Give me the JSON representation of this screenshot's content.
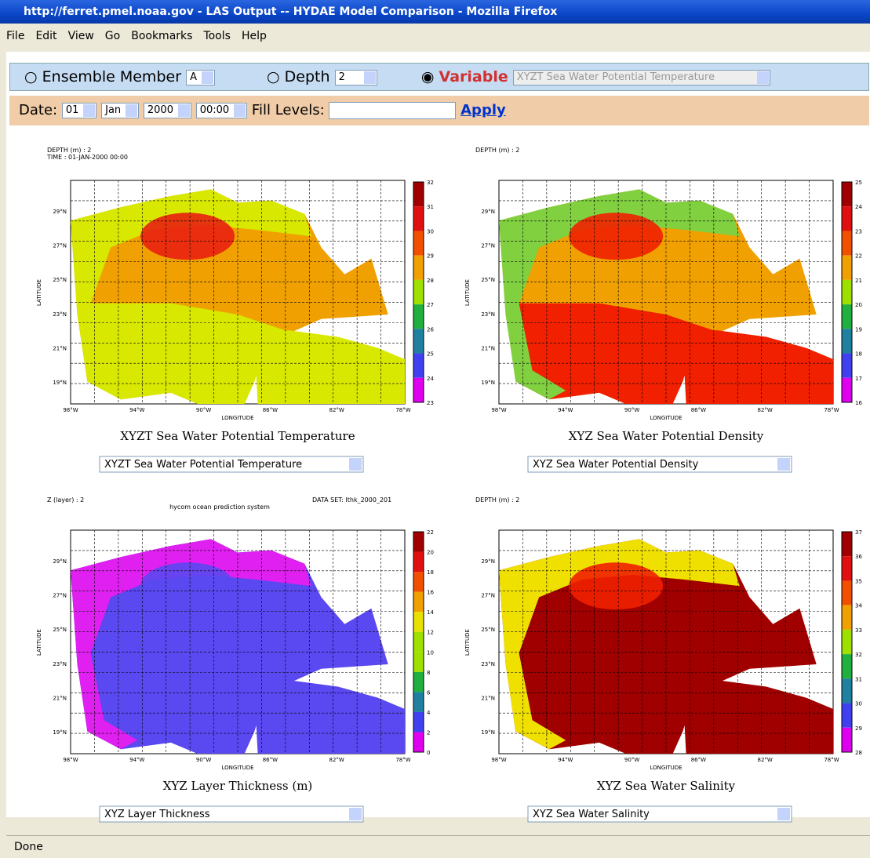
{
  "window": {
    "title": "http://ferret.pmel.noaa.gov - LAS Output -- HYDAE Model Comparison - Mozilla Firefox",
    "menu": [
      "File",
      "Edit",
      "View",
      "Go",
      "Bookmarks",
      "Tools",
      "Help"
    ]
  },
  "controls": {
    "ensemble_label": "Ensemble Member",
    "ensemble_value": "A",
    "depth_label": "Depth",
    "depth_value": "2",
    "variable_label": "Variable",
    "variable_value": "XYZT Sea Water Potential Temperature"
  },
  "date_bar": {
    "date_label": "Date:",
    "day": "01",
    "month": "Jan",
    "year": "2000",
    "time": "00:00",
    "fill_label": "Fill Levels:",
    "apply": "Apply"
  },
  "map_axes": {
    "y_label": "LATITUDE",
    "x_label": "LONGITUDE",
    "lat_ticks": [
      "29°N",
      "27°N",
      "25°N",
      "23°N",
      "21°N",
      "19°N"
    ],
    "lon_ticks": [
      "98°W",
      "94°W",
      "90°W",
      "86°W",
      "82°W",
      "78°W"
    ]
  },
  "panels": [
    {
      "header": [
        "DEPTH (m) : 2",
        "TIME : 01-JAN-2000 00:00"
      ],
      "colorbar": [
        "32",
        "31",
        "30",
        "29",
        "28",
        "27",
        "26",
        "25",
        "24",
        "23"
      ],
      "title": "XYZT Sea Water Potential Temperature",
      "select": "XYZT Sea Water Potential Temperature"
    },
    {
      "header": [
        "DEPTH (m) : 2"
      ],
      "colorbar": [
        "25",
        "24",
        "23",
        "22",
        "21",
        "20",
        "19",
        "18",
        "17",
        "16"
      ],
      "title": "XYZ Sea Water Potential Density",
      "select": "XYZ Sea Water Potential Density"
    },
    {
      "header": [
        "Z (layer) : 2"
      ],
      "dataset": "DATA SET: lthk_2000_201",
      "subtitle": "hycom ocean prediction system",
      "colorbar": [
        "22",
        "20",
        "18",
        "16",
        "14",
        "12",
        "10",
        "8",
        "6",
        "4",
        "2",
        "0"
      ],
      "title": "XYZ Layer Thickness (m)",
      "select": "XYZ Layer Thickness"
    },
    {
      "header": [
        "DEPTH (m) : 2"
      ],
      "colorbar": [
        "37",
        "36",
        "35",
        "34",
        "33",
        "32",
        "31",
        "30",
        "29",
        "28"
      ],
      "title": "XYZ Sea Water Salinity",
      "select": "XYZ Sea Water Salinity"
    }
  ],
  "status": "Done"
}
